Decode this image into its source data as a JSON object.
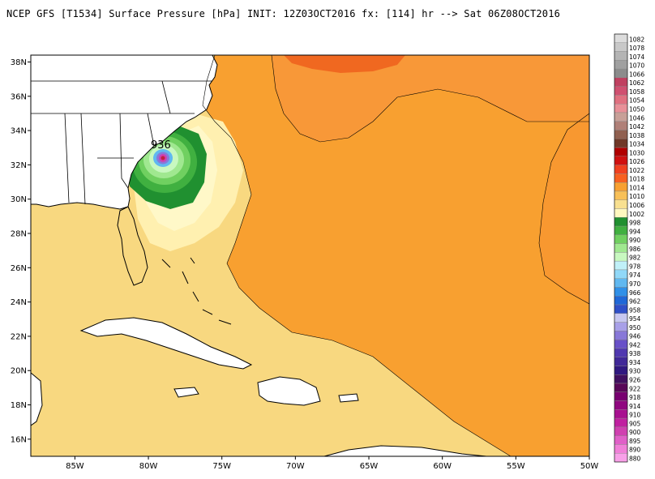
{
  "title": "NCEP GFS [T1534] Surface Pressure [hPa] INIT: 12Z03OCT2016 fx: [114] hr --> Sat 06Z08OCT2016",
  "map": {
    "lat_labels": [
      "38N",
      "36N",
      "34N",
      "32N",
      "30N",
      "28N",
      "26N",
      "24N",
      "22N",
      "20N",
      "18N",
      "16N"
    ],
    "lat_values": [
      38,
      36,
      34,
      32,
      30,
      28,
      26,
      24,
      22,
      20,
      18,
      16
    ],
    "lon_labels": [
      "85W",
      "80W",
      "75W",
      "70W",
      "65W",
      "60W",
      "55W",
      "50W"
    ],
    "lon_values": [
      -85,
      -80,
      -75,
      -70,
      -65,
      -60,
      -55,
      -50
    ],
    "lon_range": [
      -88,
      -50
    ],
    "lat_range": [
      15,
      38.4
    ],
    "center_label": "936",
    "center": {
      "lon": -79,
      "lat": 32.4
    }
  },
  "colorbar": {
    "levels": [
      "1082",
      "1078",
      "1074",
      "1070",
      "1066",
      "1062",
      "1058",
      "1054",
      "1050",
      "1046",
      "1042",
      "1038",
      "1034",
      "1030",
      "1026",
      "1022",
      "1018",
      "1014",
      "1010",
      "1006",
      "1002",
      "998",
      "994",
      "990",
      "986",
      "982",
      "978",
      "974",
      "970",
      "966",
      "962",
      "958",
      "954",
      "950",
      "946",
      "942",
      "938",
      "934",
      "930",
      "926",
      "922",
      "918",
      "914",
      "910",
      "905",
      "900",
      "895",
      "890",
      "880"
    ],
    "colors": [
      "#dcdcdc",
      "#c8c8c8",
      "#b4b4b4",
      "#a0a0a0",
      "#8c8c8c",
      "#c04060",
      "#d05070",
      "#e07080",
      "#e89098",
      "#c8a098",
      "#b08078",
      "#906050",
      "#703828",
      "#b00000",
      "#d01010",
      "#f04020",
      "#f86020",
      "#f8a030",
      "#f8c058",
      "#f8e090",
      "#fff8c0",
      "#209030",
      "#40b040",
      "#70d060",
      "#a0e890",
      "#c8f8c0",
      "#c0f0f8",
      "#90d8f8",
      "#60b8f0",
      "#3090e8",
      "#2068d8",
      "#3050c8",
      "#c8c8f0",
      "#a8a0e8",
      "#8878d8",
      "#6850c8",
      "#5038b0",
      "#402898",
      "#301880",
      "#401060",
      "#580858",
      "#780070",
      "#900880",
      "#a81090",
      "#c020a0",
      "#d040b0",
      "#e060c8",
      "#f080d8",
      "#f8a0e8"
    ]
  }
}
